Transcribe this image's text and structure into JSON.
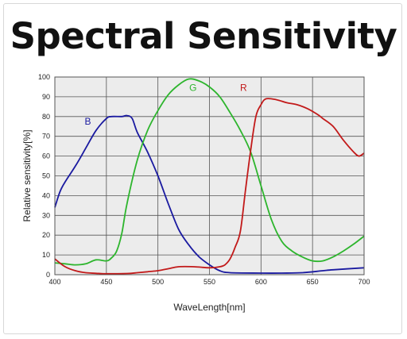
{
  "title": "Spectral Sensitivity",
  "chart_data": {
    "type": "line",
    "title": "Spectral Sensitivity",
    "xlabel": "WaveLength[nm]",
    "ylabel": "Relative sensitivity[%]",
    "xlim": [
      400,
      700
    ],
    "ylim": [
      0,
      100
    ],
    "xticks": [
      400,
      450,
      500,
      550,
      600,
      650,
      700
    ],
    "yticks": [
      0,
      10,
      20,
      30,
      40,
      50,
      60,
      70,
      80,
      90,
      100
    ],
    "grid": true,
    "background": "#ececec",
    "series": [
      {
        "name": "B",
        "color": "#1a1aa0",
        "label_pos": [
          432,
          76
        ],
        "points": [
          [
            400,
            34
          ],
          [
            405,
            42
          ],
          [
            410,
            47
          ],
          [
            420,
            55
          ],
          [
            430,
            64
          ],
          [
            440,
            73
          ],
          [
            450,
            79
          ],
          [
            455,
            80
          ],
          [
            465,
            80
          ],
          [
            470,
            80.5
          ],
          [
            475,
            79
          ],
          [
            480,
            72
          ],
          [
            490,
            62
          ],
          [
            500,
            50
          ],
          [
            510,
            36
          ],
          [
            520,
            23
          ],
          [
            530,
            15
          ],
          [
            540,
            9
          ],
          [
            550,
            5
          ],
          [
            560,
            2
          ],
          [
            570,
            1
          ],
          [
            600,
            0.8
          ],
          [
            620,
            0.8
          ],
          [
            640,
            1
          ],
          [
            660,
            2
          ],
          [
            670,
            2.5
          ],
          [
            700,
            3.5
          ]
        ]
      },
      {
        "name": "G",
        "color": "#2db52d",
        "label_pos": [
          534,
          93
        ],
        "points": [
          [
            400,
            6
          ],
          [
            410,
            5.5
          ],
          [
            420,
            5
          ],
          [
            430,
            5.5
          ],
          [
            440,
            7.5
          ],
          [
            450,
            7
          ],
          [
            455,
            8.5
          ],
          [
            460,
            12
          ],
          [
            465,
            21
          ],
          [
            470,
            36
          ],
          [
            480,
            58
          ],
          [
            490,
            73
          ],
          [
            500,
            83
          ],
          [
            510,
            91
          ],
          [
            520,
            96
          ],
          [
            530,
            99
          ],
          [
            540,
            98
          ],
          [
            550,
            95
          ],
          [
            560,
            90
          ],
          [
            570,
            82
          ],
          [
            580,
            73
          ],
          [
            590,
            62
          ],
          [
            600,
            45
          ],
          [
            610,
            28
          ],
          [
            620,
            17
          ],
          [
            630,
            12
          ],
          [
            640,
            9
          ],
          [
            650,
            7
          ],
          [
            660,
            7
          ],
          [
            670,
            9
          ],
          [
            680,
            12
          ],
          [
            690,
            15.5
          ],
          [
            700,
            19.5
          ]
        ]
      },
      {
        "name": "R",
        "color": "#c21a1a",
        "label_pos": [
          583,
          93
        ],
        "points": [
          [
            400,
            8
          ],
          [
            410,
            4
          ],
          [
            420,
            2
          ],
          [
            430,
            1
          ],
          [
            440,
            0.7
          ],
          [
            450,
            0.5
          ],
          [
            470,
            0.6
          ],
          [
            480,
            1
          ],
          [
            490,
            1.5
          ],
          [
            500,
            2
          ],
          [
            510,
            3
          ],
          [
            520,
            4
          ],
          [
            535,
            4
          ],
          [
            550,
            3.5
          ],
          [
            560,
            4
          ],
          [
            565,
            5
          ],
          [
            570,
            8
          ],
          [
            575,
            14
          ],
          [
            580,
            22
          ],
          [
            585,
            43
          ],
          [
            590,
            63
          ],
          [
            595,
            80
          ],
          [
            600,
            86
          ],
          [
            605,
            89
          ],
          [
            615,
            88.5
          ],
          [
            625,
            87
          ],
          [
            635,
            86
          ],
          [
            645,
            84
          ],
          [
            655,
            81
          ],
          [
            660,
            79
          ],
          [
            670,
            75
          ],
          [
            680,
            68
          ],
          [
            690,
            62
          ],
          [
            695,
            60
          ],
          [
            700,
            61.5
          ]
        ]
      }
    ]
  }
}
